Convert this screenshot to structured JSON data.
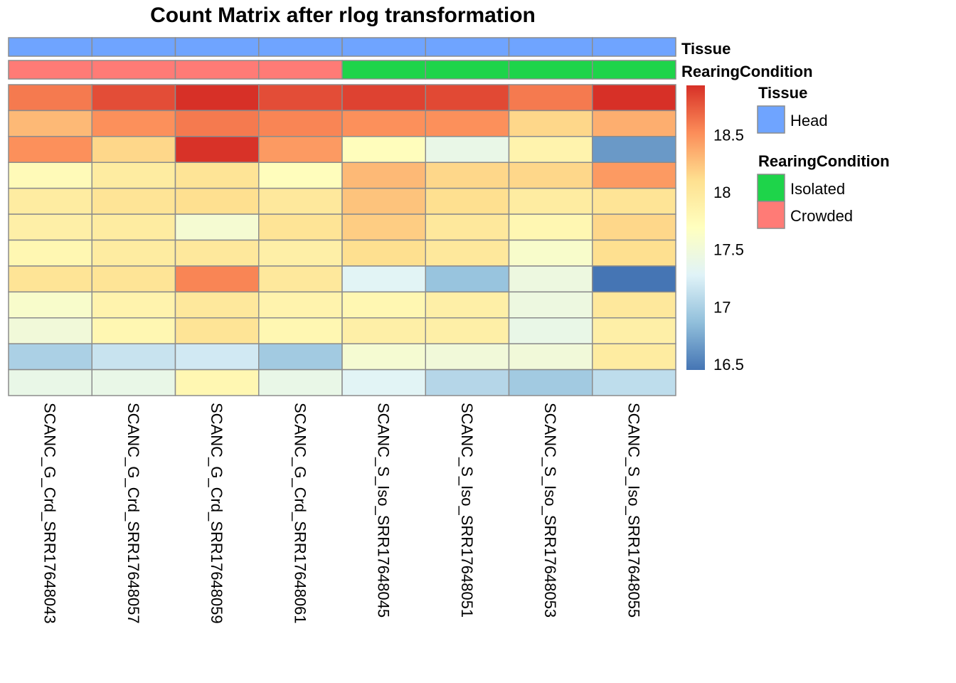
{
  "chart_data": {
    "type": "heatmap",
    "title": "Count Matrix after rlog transformation",
    "columns": [
      "SCANC_G_Crd_SRR17648043",
      "SCANC_G_Crd_SRR17648057",
      "SCANC_G_Crd_SRR17648059",
      "SCANC_G_Crd_SRR17648061",
      "SCANC_S_Iso_SRR17648045",
      "SCANC_S_Iso_SRR17648051",
      "SCANC_S_Iso_SRR17648053",
      "SCANC_S_Iso_SRR17648055"
    ],
    "values": [
      [
        18.6,
        18.8,
        18.93,
        18.8,
        18.85,
        18.82,
        18.6,
        18.93
      ],
      [
        18.3,
        18.5,
        18.6,
        18.55,
        18.5,
        18.5,
        18.15,
        18.35
      ],
      [
        18.5,
        18.15,
        18.92,
        18.45,
        17.72,
        17.4,
        17.85,
        16.65
      ],
      [
        17.75,
        17.95,
        18.05,
        17.72,
        18.3,
        18.15,
        18.15,
        18.45
      ],
      [
        17.95,
        18.05,
        18.1,
        18.0,
        18.25,
        18.1,
        17.95,
        18.05
      ],
      [
        17.9,
        17.95,
        17.55,
        18.05,
        18.2,
        18.0,
        17.8,
        18.15
      ],
      [
        17.8,
        17.95,
        18.0,
        17.9,
        18.1,
        18.0,
        17.6,
        18.1
      ],
      [
        18.05,
        18.05,
        18.55,
        18.0,
        17.3,
        16.9,
        17.45,
        16.45
      ],
      [
        17.6,
        17.85,
        18.0,
        17.85,
        17.8,
        17.9,
        17.45,
        18.0
      ],
      [
        17.5,
        17.8,
        18.05,
        17.8,
        17.9,
        17.9,
        17.4,
        17.9
      ],
      [
        17.0,
        17.15,
        17.2,
        16.95,
        17.55,
        17.5,
        17.5,
        17.95
      ],
      [
        17.4,
        17.4,
        17.8,
        17.4,
        17.3,
        17.05,
        16.95,
        17.1
      ]
    ],
    "value_range": [
      16.45,
      18.93
    ],
    "palette": [
      "#4575B4",
      "#91BFDB",
      "#E0F3F8",
      "#FFFFBF",
      "#FEE090",
      "#FC8D59",
      "#D73027"
    ],
    "colorbar_ticks": [
      "18.5",
      "18",
      "17.5",
      "17",
      "16.5"
    ],
    "colorbar_tick_values": [
      18.5,
      18,
      17.5,
      17,
      16.5
    ],
    "annotations": [
      {
        "name": "Tissue",
        "values": [
          "Head",
          "Head",
          "Head",
          "Head",
          "Head",
          "Head",
          "Head",
          "Head"
        ]
      },
      {
        "name": "RearingCondition",
        "values": [
          "Crowded",
          "Crowded",
          "Crowded",
          "Crowded",
          "Isolated",
          "Isolated",
          "Isolated",
          "Isolated"
        ]
      }
    ],
    "legend": [
      {
        "title": "Tissue",
        "items": [
          {
            "label": "Head",
            "color": "#6FA4FF"
          }
        ]
      },
      {
        "title": "RearingCondition",
        "items": [
          {
            "label": "Isolated",
            "color": "#1ED44A"
          },
          {
            "label": "Crowded",
            "color": "#FF7B76"
          }
        ]
      }
    ],
    "legend_position": "right"
  }
}
